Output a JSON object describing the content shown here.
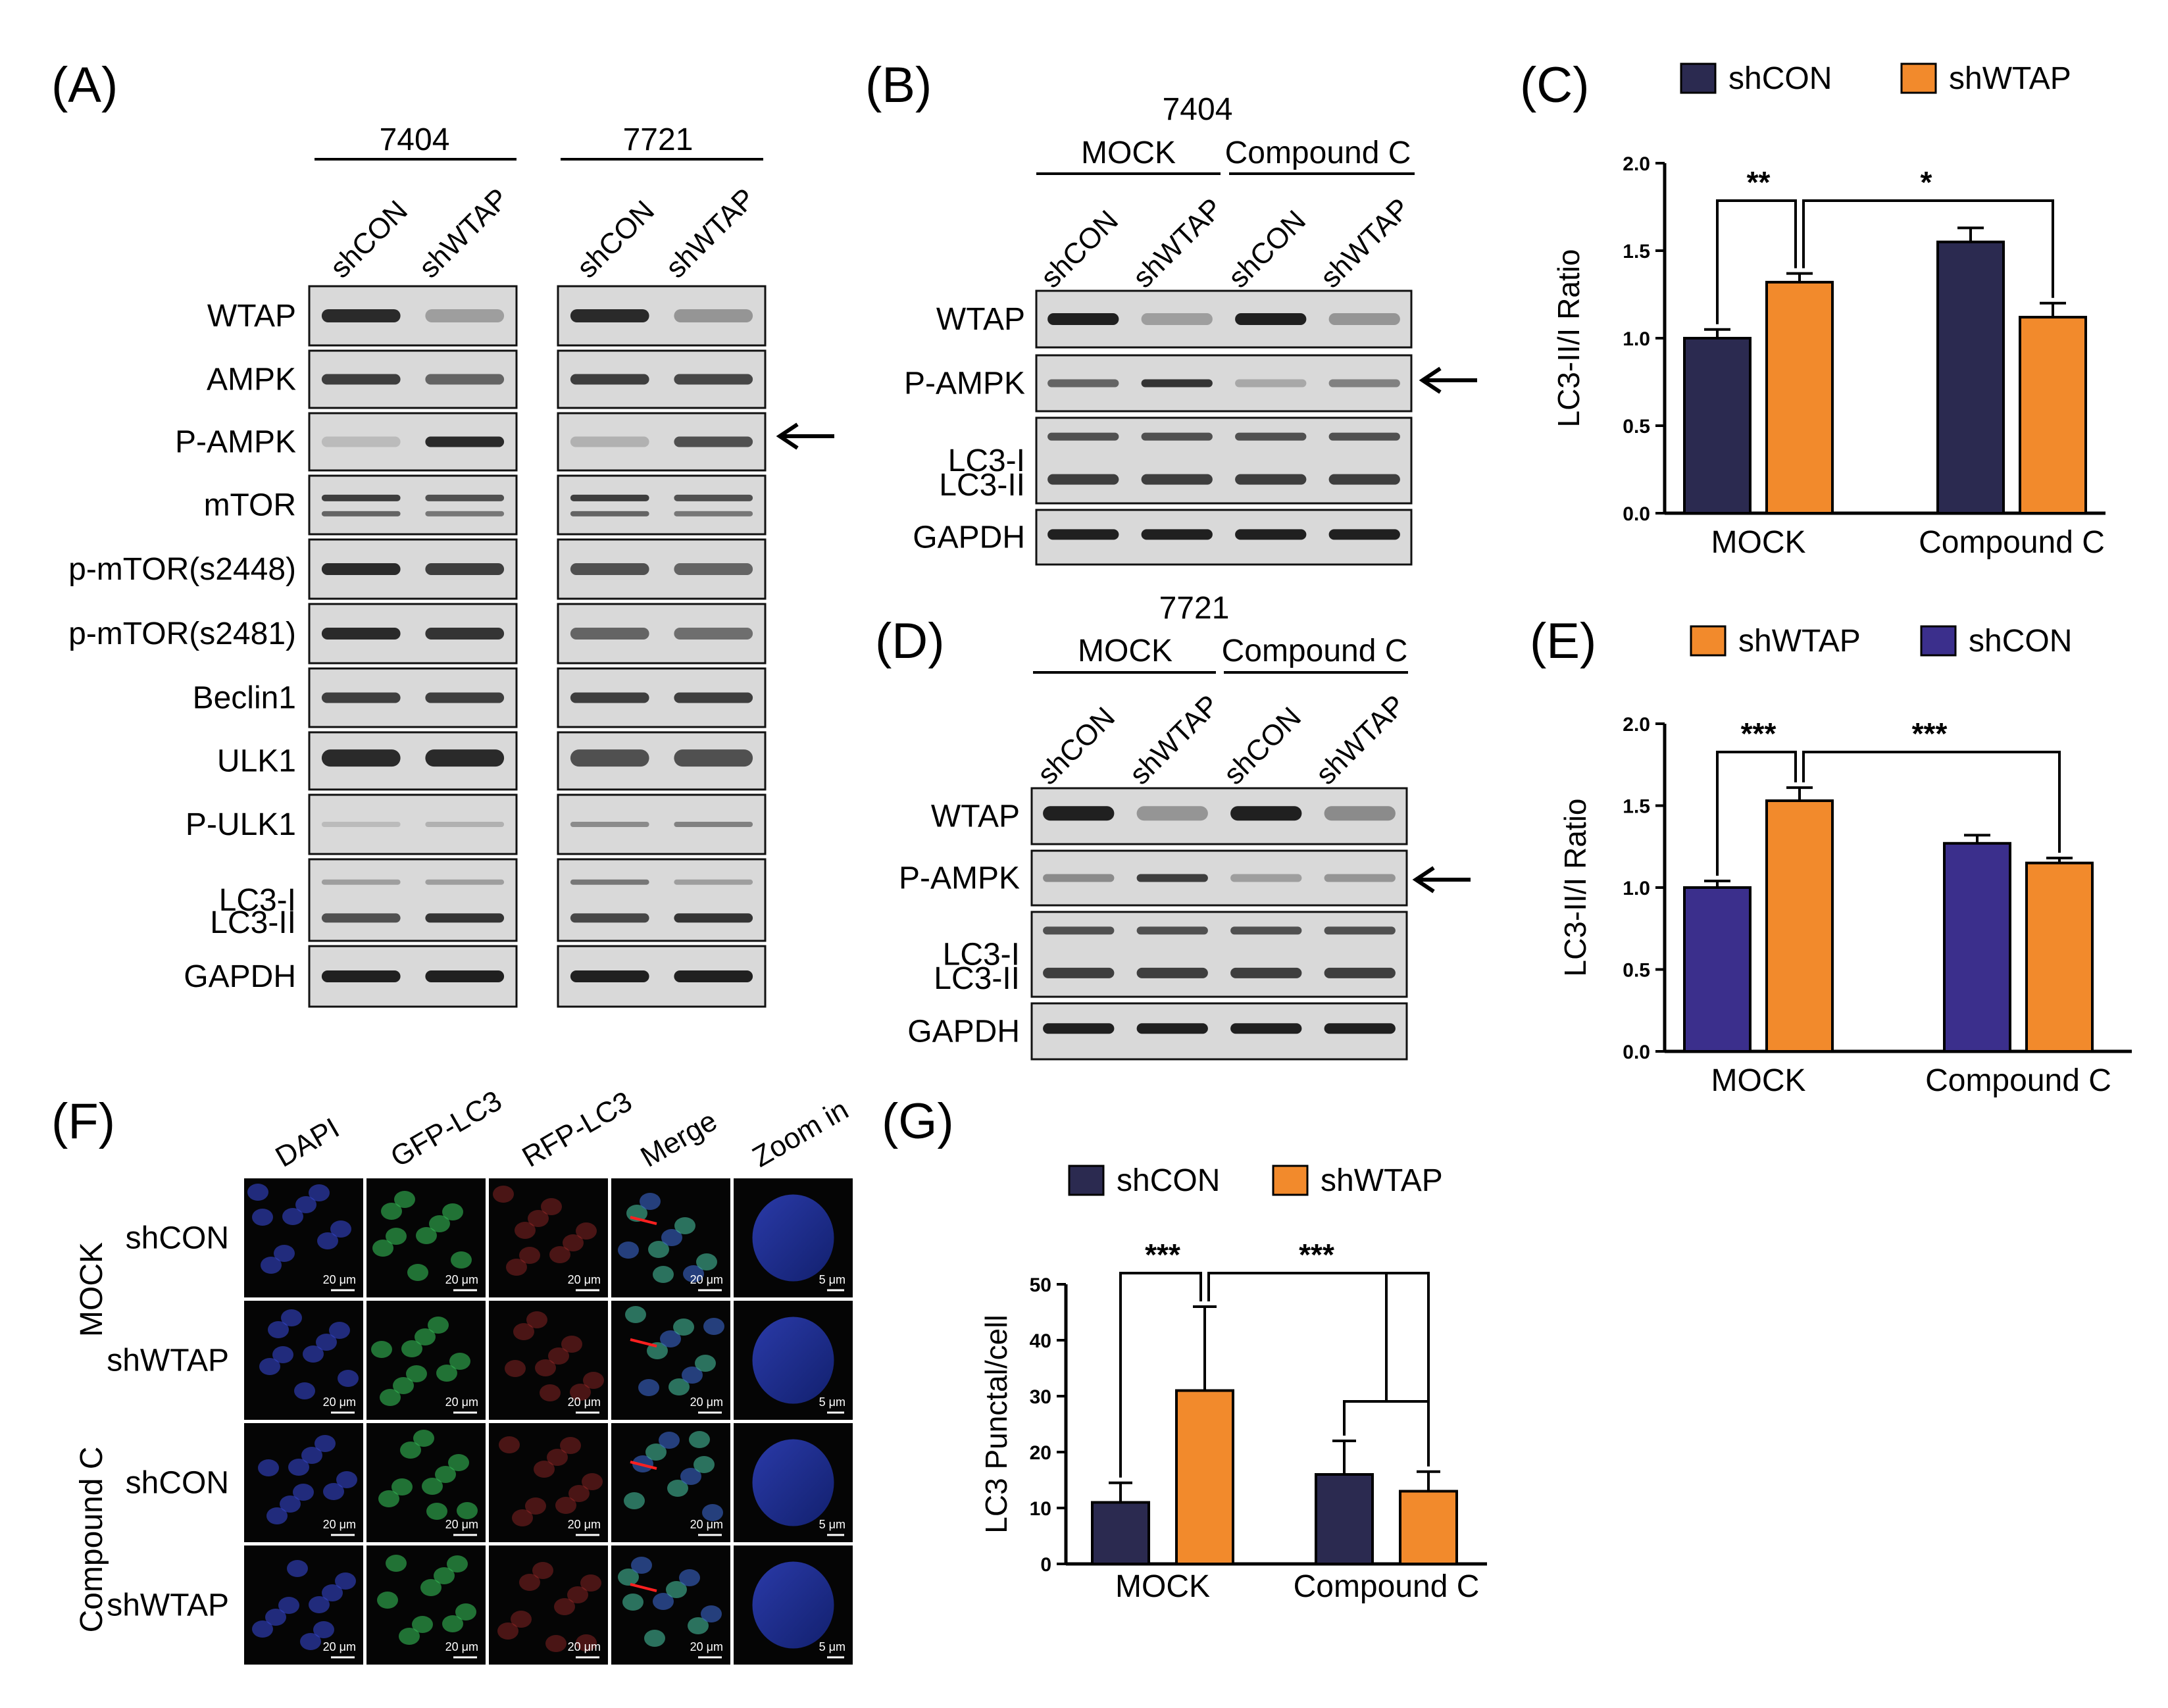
{
  "panels": {
    "A": {
      "label": "(A)",
      "cell_lines": [
        "7404",
        "7721"
      ],
      "lanes": [
        "shCON",
        "shWTAP"
      ],
      "rows": [
        "WTAP",
        "AMPK",
        "P-AMPK",
        "mTOR",
        "p-mTOR(s2448)",
        "p-mTOR(s2481)",
        "Beclin1",
        "ULK1",
        "P-ULK1",
        "LC3-I",
        "LC3-II",
        "GAPDH"
      ],
      "arrow": "left-arrow-icon"
    },
    "B": {
      "label": "(B)",
      "cell_line": "7404",
      "groups": [
        "MOCK",
        "Compound C"
      ],
      "lanes": [
        "shCON",
        "shWTAP",
        "shCON",
        "shWTAP"
      ],
      "rows": [
        "WTAP",
        "P-AMPK",
        "LC3-I",
        "LC3-II",
        "GAPDH"
      ],
      "arrow": "left-arrow-icon"
    },
    "D": {
      "label": "(D)",
      "cell_line": "7721",
      "groups": [
        "MOCK",
        "Compound C"
      ],
      "lanes": [
        "shCON",
        "shWTAP",
        "shCON",
        "shWTAP"
      ],
      "rows": [
        "WTAP",
        "P-AMPK",
        "LC3-I",
        "LC3-II",
        "GAPDH"
      ],
      "arrow": "left-arrow-icon"
    },
    "F": {
      "label": "(F)",
      "columns": [
        "DAPI",
        "GFP-LC3",
        "RFP-LC3",
        "Merge",
        "Zoom in"
      ],
      "groups": [
        "MOCK",
        "Compound C"
      ],
      "rows": [
        "shCON",
        "shWTAP",
        "shCON",
        "shWTAP"
      ],
      "scale_bar": "20 μm",
      "zoom_scale_bar": "5 μm"
    }
  },
  "colors": {
    "shCON": "#2b2a50",
    "shCON_E": "#3b2f8c",
    "shWTAP": "#f28a2c",
    "blot_bg": "#d9d9d9",
    "band": "#161616"
  },
  "chart_data": [
    {
      "panel": "(C)",
      "type": "bar",
      "categories": [
        "MOCK",
        "Compound C"
      ],
      "series": [
        {
          "name": "shCON",
          "values": [
            1.0,
            1.55
          ],
          "errors": [
            0.05,
            0.08
          ]
        },
        {
          "name": "shWTAP",
          "values": [
            1.32,
            1.12
          ],
          "errors": [
            0.05,
            0.08
          ]
        }
      ],
      "legend": [
        "shCON",
        "shWTAP"
      ],
      "legend_position": "top",
      "ylabel": "LC3-II/I Ratio",
      "xlabel": "",
      "ylim": [
        0,
        2.0
      ],
      "yticks": [
        "0.0",
        "0.5",
        "1.0",
        "1.5",
        "2.0"
      ],
      "significance": [
        "**",
        "*"
      ]
    },
    {
      "panel": "(E)",
      "type": "bar",
      "categories": [
        "MOCK",
        "Compound C"
      ],
      "series": [
        {
          "name": "shCON",
          "values": [
            1.0,
            1.27
          ],
          "errors": [
            0.04,
            0.05
          ]
        },
        {
          "name": "shWTAP",
          "values": [
            1.53,
            1.15
          ],
          "errors": [
            0.08,
            0.03
          ]
        }
      ],
      "legend": [
        "shWTAP",
        "shCON"
      ],
      "legend_position": "top",
      "ylabel": "LC3-II/I Ratio",
      "xlabel": "",
      "ylim": [
        0,
        2.0
      ],
      "yticks": [
        "0.0",
        "0.5",
        "1.0",
        "1.5",
        "2.0"
      ],
      "significance": [
        "***",
        "***"
      ]
    },
    {
      "panel": "(G)",
      "type": "bar",
      "categories": [
        "MOCK",
        "Compound C"
      ],
      "series": [
        {
          "name": "shCON",
          "values": [
            11,
            16
          ],
          "errors": [
            3.5,
            6
          ]
        },
        {
          "name": "shWTAP",
          "values": [
            31,
            13
          ],
          "errors": [
            15,
            3.5
          ]
        }
      ],
      "legend": [
        "shCON",
        "shWTAP"
      ],
      "legend_position": "top",
      "ylabel": "LC3 Punctal/cell",
      "xlabel": "",
      "ylim": [
        0,
        50
      ],
      "yticks": [
        "0",
        "10",
        "20",
        "30",
        "40",
        "50"
      ],
      "significance": [
        "***",
        "***"
      ]
    }
  ]
}
